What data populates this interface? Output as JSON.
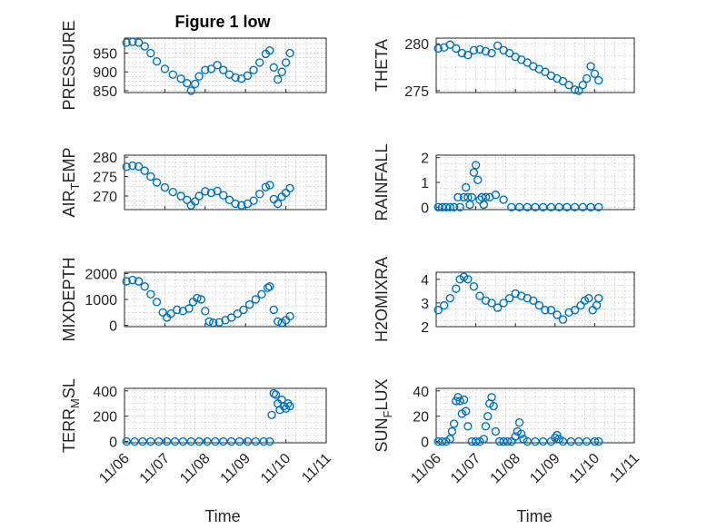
{
  "figure": {
    "title": "Figure 1 low",
    "xlabel": "Time",
    "marker_color": "#0072bd",
    "x_ticks": [
      "11/06",
      "11/07",
      "11/08",
      "11/09",
      "11/10",
      "11/11"
    ]
  },
  "chart_data": [
    {
      "type": "scatter",
      "panel": "top-left",
      "title": "Figure 1 low",
      "ylabel": "PRESSURE",
      "xlabel": "",
      "ylim": [
        845,
        990
      ],
      "yticks": [
        850,
        900,
        950
      ],
      "x_unit": "days since 11/06 00:00",
      "xlim": [
        0,
        5
      ],
      "grid": true,
      "x": [
        0.05,
        0.2,
        0.35,
        0.5,
        0.65,
        0.8,
        1.0,
        1.2,
        1.4,
        1.55,
        1.65,
        1.75,
        1.85,
        2.0,
        2.15,
        2.3,
        2.45,
        2.6,
        2.75,
        2.9,
        3.05,
        3.2,
        3.35,
        3.5,
        3.6,
        3.7,
        3.8,
        3.9,
        4.0,
        4.1
      ],
      "y": [
        978,
        980,
        978,
        968,
        950,
        928,
        908,
        893,
        882,
        870,
        850,
        868,
        888,
        905,
        908,
        918,
        905,
        893,
        885,
        882,
        890,
        905,
        925,
        948,
        957,
        912,
        880,
        900,
        925,
        950
      ]
    },
    {
      "type": "scatter",
      "panel": "top-right",
      "ylabel": "THETA",
      "xlabel": "",
      "ylim": [
        274.8,
        280.6
      ],
      "yticks": [
        275,
        280
      ],
      "x_unit": "days since 11/06 00:00",
      "xlim": [
        0,
        5
      ],
      "grid": true,
      "x": [
        0.05,
        0.2,
        0.35,
        0.5,
        0.65,
        0.8,
        0.95,
        1.1,
        1.25,
        1.4,
        1.55,
        1.7,
        1.85,
        2.0,
        2.15,
        2.3,
        2.45,
        2.6,
        2.75,
        2.9,
        3.05,
        3.2,
        3.35,
        3.5,
        3.6,
        3.7,
        3.8,
        3.9,
        4.0,
        4.1
      ],
      "y": [
        279.5,
        279.6,
        279.9,
        279.5,
        279.0,
        278.8,
        279.3,
        279.4,
        279.2,
        279.0,
        279.8,
        279.3,
        279.0,
        278.6,
        278.3,
        278.0,
        277.6,
        277.3,
        277.0,
        276.6,
        276.3,
        276.0,
        275.6,
        275.1,
        275.0,
        275.6,
        276.3,
        277.6,
        276.8,
        276.1
      ]
    },
    {
      "type": "scatter",
      "panel": "middle-left",
      "ylabel": "AIR_TEMP",
      "xlabel": "",
      "ylim": [
        266.5,
        280.5
      ],
      "yticks": [
        270,
        275,
        280
      ],
      "x_unit": "days since 11/06 00:00",
      "xlim": [
        0,
        5
      ],
      "grid": true,
      "x": [
        0.05,
        0.2,
        0.35,
        0.5,
        0.65,
        0.8,
        1.0,
        1.2,
        1.4,
        1.55,
        1.65,
        1.75,
        1.85,
        2.0,
        2.15,
        2.3,
        2.45,
        2.6,
        2.75,
        2.9,
        3.05,
        3.2,
        3.35,
        3.5,
        3.6,
        3.7,
        3.8,
        3.9,
        4.0,
        4.1
      ],
      "y": [
        277.5,
        277.8,
        277.6,
        276.5,
        275.0,
        273.5,
        272.2,
        271.0,
        270.0,
        269.0,
        267.6,
        268.6,
        270.0,
        271.2,
        270.8,
        271.3,
        270.2,
        269.0,
        268.0,
        267.6,
        268.0,
        268.8,
        270.5,
        272.3,
        272.8,
        269.2,
        268.0,
        269.8,
        270.8,
        272.0
      ]
    },
    {
      "type": "scatter",
      "panel": "middle-right",
      "ylabel": "RAINFALL",
      "xlabel": "",
      "ylim": [
        -0.1,
        2.1
      ],
      "yticks": [
        0,
        1,
        2
      ],
      "x_unit": "days since 11/06 00:00",
      "xlim": [
        0,
        5
      ],
      "grid": true,
      "x": [
        0.05,
        0.15,
        0.25,
        0.35,
        0.45,
        0.55,
        0.6,
        0.7,
        0.75,
        0.8,
        0.85,
        0.9,
        0.95,
        1.0,
        1.05,
        1.1,
        1.15,
        1.2,
        1.25,
        1.35,
        1.5,
        1.7,
        1.9,
        2.1,
        2.3,
        2.5,
        2.7,
        2.9,
        3.1,
        3.3,
        3.5,
        3.7,
        3.9,
        4.1
      ],
      "y": [
        0,
        0,
        0,
        0,
        0,
        0.4,
        0,
        0.4,
        0.8,
        0.4,
        0.1,
        0.4,
        1.4,
        1.7,
        1.1,
        0.3,
        0.4,
        0.1,
        0.4,
        0.4,
        0.5,
        0.3,
        0,
        0,
        0,
        0,
        0,
        0,
        0,
        0,
        0,
        0,
        0,
        0
      ]
    },
    {
      "type": "scatter",
      "panel": "lower-left",
      "ylabel": "MIXDEPTH",
      "xlabel": "",
      "ylim": [
        -50,
        2050
      ],
      "yticks": [
        0,
        1000,
        2000
      ],
      "x_unit": "days since 11/06 00:00",
      "xlim": [
        0,
        5
      ],
      "grid": true,
      "x": [
        0.05,
        0.2,
        0.35,
        0.5,
        0.65,
        0.8,
        0.95,
        1.05,
        1.15,
        1.3,
        1.45,
        1.6,
        1.7,
        1.8,
        1.9,
        2.0,
        2.1,
        2.2,
        2.35,
        2.5,
        2.65,
        2.8,
        2.95,
        3.1,
        3.25,
        3.4,
        3.55,
        3.6,
        3.7,
        3.8,
        3.9,
        4.0,
        4.1
      ],
      "y": [
        1700,
        1750,
        1700,
        1500,
        1200,
        900,
        500,
        300,
        450,
        600,
        550,
        650,
        900,
        1050,
        1000,
        550,
        150,
        100,
        120,
        200,
        300,
        450,
        600,
        800,
        1000,
        1200,
        1450,
        1500,
        600,
        150,
        100,
        200,
        350
      ]
    },
    {
      "type": "scatter",
      "panel": "lower-right",
      "ylabel": "H2OMIXRA",
      "xlabel": "",
      "ylim": [
        2,
        4.3
      ],
      "yticks": [
        2,
        3,
        4
      ],
      "x_unit": "days since 11/06 00:00",
      "xlim": [
        0,
        5
      ],
      "grid": true,
      "x": [
        0.05,
        0.2,
        0.35,
        0.5,
        0.6,
        0.7,
        0.8,
        0.95,
        1.1,
        1.25,
        1.4,
        1.55,
        1.7,
        1.85,
        2.0,
        2.15,
        2.3,
        2.45,
        2.6,
        2.75,
        2.9,
        3.05,
        3.2,
        3.35,
        3.5,
        3.65,
        3.75,
        3.85,
        3.95,
        4.05,
        4.1
      ],
      "y": [
        2.7,
        2.9,
        3.2,
        3.6,
        4.0,
        4.1,
        4.0,
        3.7,
        3.3,
        3.1,
        3.0,
        2.8,
        3.0,
        3.2,
        3.4,
        3.3,
        3.2,
        3.1,
        2.9,
        2.7,
        2.7,
        2.5,
        2.3,
        2.6,
        2.7,
        2.9,
        3.1,
        3.2,
        2.7,
        2.9,
        3.2
      ]
    },
    {
      "type": "scatter",
      "panel": "bottom-left",
      "ylabel": "TERR_MSL",
      "xlabel": "Time",
      "ylim": [
        -10,
        420
      ],
      "yticks": [
        0,
        200,
        400
      ],
      "x_unit": "days since 11/06 00:00",
      "xlim": [
        0,
        5
      ],
      "grid": true,
      "x": [
        0.05,
        0.25,
        0.45,
        0.65,
        0.85,
        1.05,
        1.25,
        1.45,
        1.65,
        1.85,
        2.05,
        2.25,
        2.45,
        2.65,
        2.85,
        3.05,
        3.25,
        3.45,
        3.6,
        3.65,
        3.7,
        3.75,
        3.8,
        3.85,
        3.9,
        3.95,
        4.0,
        4.05,
        4.1
      ],
      "y": [
        0,
        0,
        0,
        0,
        0,
        0,
        0,
        0,
        0,
        0,
        0,
        0,
        0,
        0,
        0,
        0,
        0,
        0,
        0,
        210,
        380,
        370,
        300,
        250,
        330,
        280,
        260,
        300,
        280
      ]
    },
    {
      "type": "scatter",
      "panel": "bottom-right",
      "ylabel": "SUN_FLUX",
      "xlabel": "Time",
      "ylim": [
        -1,
        42
      ],
      "yticks": [
        0,
        20,
        40
      ],
      "x_unit": "days since 11/06 00:00",
      "xlim": [
        0,
        5
      ],
      "grid": true,
      "x": [
        0.05,
        0.15,
        0.25,
        0.35,
        0.4,
        0.45,
        0.5,
        0.55,
        0.6,
        0.65,
        0.7,
        0.75,
        0.8,
        0.9,
        1.0,
        1.1,
        1.2,
        1.25,
        1.3,
        1.35,
        1.4,
        1.45,
        1.5,
        1.6,
        1.7,
        1.8,
        1.9,
        2.0,
        2.05,
        2.1,
        2.15,
        2.2,
        2.3,
        2.5,
        2.7,
        2.9,
        3.0,
        3.05,
        3.1,
        3.2,
        3.4,
        3.6,
        3.8,
        4.0,
        4.1
      ],
      "y": [
        0,
        0,
        0,
        2,
        8,
        14,
        32,
        35,
        32,
        22,
        33,
        24,
        12,
        0,
        0,
        0,
        2,
        12,
        20,
        30,
        35,
        28,
        8,
        0,
        0,
        0,
        0,
        4,
        8,
        15,
        6,
        2,
        0,
        0,
        0,
        0,
        3,
        5,
        2,
        0,
        0,
        0,
        0,
        0,
        0
      ]
    }
  ]
}
